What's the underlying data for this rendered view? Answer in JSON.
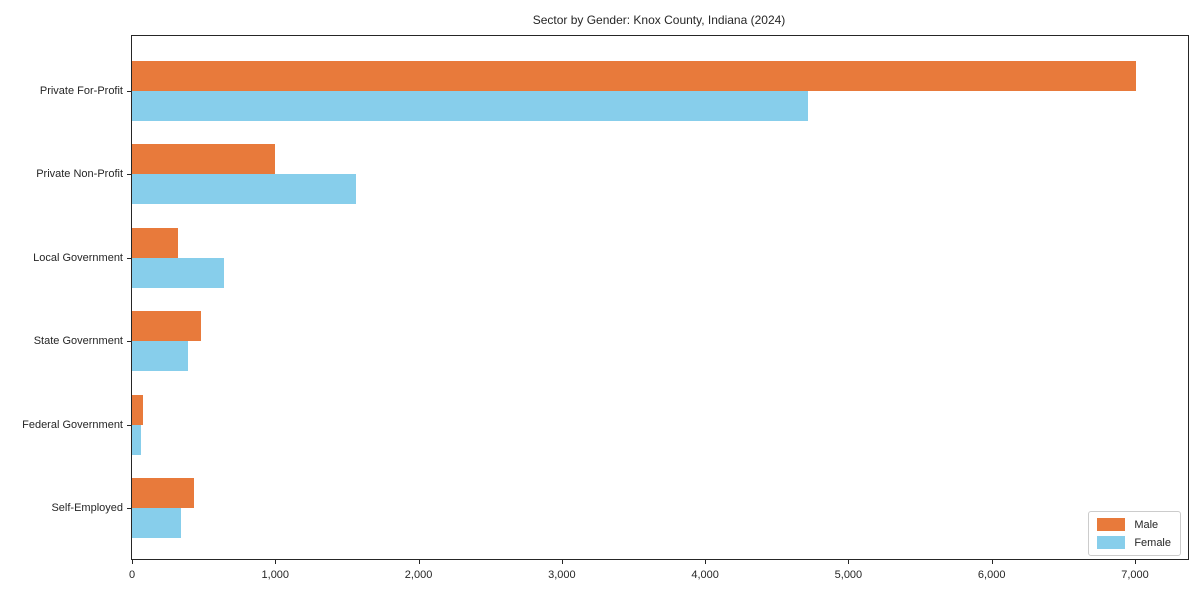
{
  "chart_data": {
    "type": "bar",
    "orientation": "horizontal",
    "title": "Sector by Gender: Knox County, Indiana (2024)",
    "xlabel": "",
    "ylabel": "",
    "categories": [
      "Private For-Profit",
      "Private Non-Profit",
      "Local Government",
      "State Government",
      "Federal Government",
      "Self-Employed"
    ],
    "series": [
      {
        "name": "Male",
        "color": "#e87a3b",
        "values": [
          7010,
          1000,
          320,
          480,
          80,
          430
        ]
      },
      {
        "name": "Female",
        "color": "#87ceeb",
        "values": [
          4720,
          1560,
          640,
          390,
          60,
          340
        ]
      }
    ],
    "xlim": [
      0,
      7370
    ],
    "x_ticks": [
      {
        "value": 0,
        "label": "0"
      },
      {
        "value": 1000,
        "label": "1,000"
      },
      {
        "value": 2000,
        "label": "2,000"
      },
      {
        "value": 3000,
        "label": "3,000"
      },
      {
        "value": 4000,
        "label": "4,000"
      },
      {
        "value": 5000,
        "label": "5,000"
      },
      {
        "value": 6000,
        "label": "6,000"
      },
      {
        "value": 7000,
        "label": "7,000"
      }
    ],
    "grid": false,
    "legend_position": "lower right"
  }
}
